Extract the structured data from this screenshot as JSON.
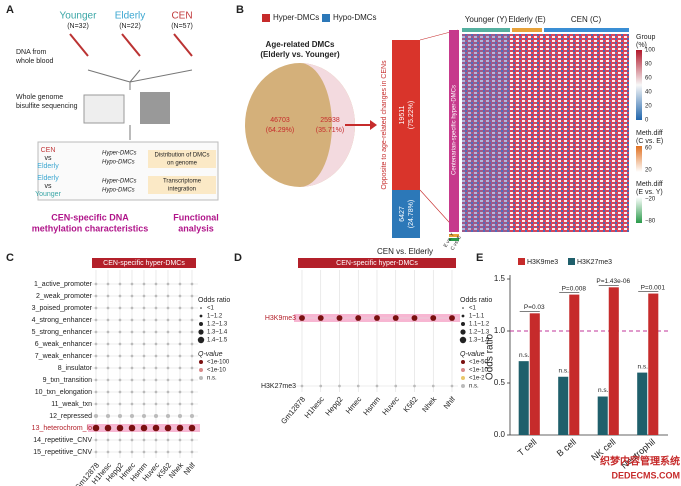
{
  "panel_a": {
    "label": "A",
    "groups": [
      "Younger",
      "Elderly",
      "CEN"
    ],
    "group_n": [
      "(N=32)",
      "(N=22)",
      "(N=57)"
    ],
    "steps": [
      "DNA from",
      "whole blood",
      "Whole genome",
      "bisulfite sequencing"
    ],
    "comparisons": [
      "CEN",
      "vs",
      "Elderly",
      "Elderly",
      "vs",
      "Younger"
    ],
    "hyper": "Hyper-DMCs",
    "hypo": "Hypo-DMCs",
    "analyses": [
      "Distribution of DMCs",
      "on genome",
      "Transcriptome",
      "integration"
    ],
    "outcomes": [
      "CEN-specific DNA",
      "methylation characteristics",
      "Functional",
      "analysis"
    ]
  },
  "panel_b": {
    "label": "B",
    "legend": [
      "Hyper-DMCs",
      "Hypo-DMCs"
    ],
    "pie_title": [
      "Age-related DMCs",
      "(Elderly vs. Younger)"
    ],
    "pie_labels": [
      "46703",
      "(64.29%)",
      "25938",
      "(35.71%)"
    ],
    "side_label": [
      "Opposite to age-related changes in CENs"
    ],
    "bar_labels": [
      "19511",
      "(75.22%)",
      "6427",
      "(24.78%)"
    ],
    "bar_caption": "CEN vs. Elderly",
    "strip_label": "Centenarian-specific hyper-DMCs",
    "groups": [
      "Younger (Y)",
      "Elderly (E)",
      "CEN (C)"
    ],
    "legend_titles": [
      "Group",
      "(%)",
      "Meth.diff",
      "(C vs. E)",
      "Meth.diff",
      "(E vs. Y)"
    ],
    "scale1": [
      "100",
      "80",
      "60",
      "40",
      "20",
      "0"
    ],
    "scale2": [
      "60",
      "20"
    ],
    "scale3": [
      "−20",
      "−80"
    ],
    "row_labels": [
      "E vs. Y",
      "C vs. E"
    ]
  },
  "chart_data": [
    {
      "type": "dot",
      "label": "C",
      "banner": "CEN-specific hyper-DMCs",
      "rows": [
        "1_active_promoter",
        "2_weak_promoter",
        "3_poised_promoter",
        "4_strong_enhancer",
        "5_strong_enhancer",
        "6_weak_enhancer",
        "7_weak_enhancer",
        "8_insulator",
        "9_txn_transition",
        "10_txn_elongation",
        "11_weak_txn",
        "12_repressed",
        "13_heterochrom_lo",
        "14_repetitive_CNV",
        "15_repetitive_CNV"
      ],
      "columns": [
        "Gm12878",
        "H1hesc",
        "Hepg2",
        "Hmec",
        "Hsmm",
        "Huvec",
        "K562",
        "Nhek",
        "Nhlf"
      ],
      "highlight_row": 12,
      "highlight_color": "#f7b6d2",
      "row_colors": [
        "#bbbbbb",
        "#bbbbbb",
        "#bbbbbb",
        "#bbbbbb",
        "#bbbbbb",
        "#bbbbbb",
        "#bbbbbb",
        "#bbbbbb",
        "#bbbbbb",
        "#bbbbbb",
        "#bbbbbb",
        "#bbbbbb",
        "#7a1010",
        "#bbbbbb",
        "#bbbbbb"
      ],
      "values": [
        [
          0.9,
          0.9,
          0.9,
          0.9,
          0.9,
          0.9,
          0.9,
          0.9,
          0.9
        ],
        [
          0.9,
          0.9,
          0.9,
          0.9,
          0.9,
          0.9,
          0.9,
          0.9,
          0.9
        ],
        [
          0.9,
          0.9,
          0.9,
          0.9,
          0.9,
          0.9,
          0.9,
          0.9,
          0.9
        ],
        [
          0.9,
          0.9,
          0.9,
          0.9,
          0.9,
          0.9,
          0.9,
          0.9,
          0.9
        ],
        [
          0.9,
          0.9,
          0.9,
          0.9,
          0.9,
          0.9,
          0.9,
          0.9,
          0.9
        ],
        [
          0.9,
          0.9,
          0.9,
          0.9,
          0.9,
          0.9,
          0.9,
          0.9,
          0.9
        ],
        [
          0.9,
          0.9,
          0.9,
          0.9,
          0.9,
          0.9,
          0.9,
          0.9,
          0.9
        ],
        [
          0.9,
          0.9,
          0.9,
          0.9,
          0.9,
          0.9,
          0.9,
          0.9,
          0.9
        ],
        [
          0.9,
          0.9,
          0.9,
          0.9,
          0.9,
          0.9,
          0.9,
          0.9,
          0.9
        ],
        [
          0.9,
          0.9,
          0.9,
          0.9,
          0.9,
          0.9,
          0.9,
          0.9,
          0.9
        ],
        [
          0.9,
          0.9,
          0.9,
          0.9,
          0.9,
          0.9,
          0.9,
          0.9,
          0.9
        ],
        [
          1.1,
          1.1,
          1.1,
          1.1,
          1.1,
          1.1,
          1.1,
          1.1,
          1.1
        ],
        [
          1.45,
          1.45,
          1.45,
          1.45,
          1.45,
          1.45,
          1.45,
          1.45,
          1.45
        ],
        [
          0.9,
          0.9,
          0.9,
          0.9,
          0.9,
          0.9,
          0.9,
          0.9,
          0.9
        ],
        [
          0.9,
          0.9,
          0.9,
          0.9,
          0.9,
          0.9,
          0.9,
          0.9,
          0.9
        ]
      ],
      "size_title": "Odds ratio",
      "size_labels": [
        "<1",
        "1~1.2",
        "1.2~1.3",
        "1.3~1.4",
        "1.4~1.5"
      ],
      "color_title": "Q-value",
      "color_labels": [
        "<1e-100",
        "<1e-10",
        "n.s."
      ],
      "color_levels": [
        "#7a1010",
        "#d88a8a",
        "#bbbbbb"
      ]
    },
    {
      "type": "dot",
      "label": "D",
      "banner": "CEN-specific hyper-DMCs",
      "rows": [
        "H3K9me3",
        "H3K27me3"
      ],
      "columns": [
        "Gm12878",
        "H1hesc",
        "Hepg2",
        "Hmec",
        "Hsmm",
        "Huvec",
        "K562",
        "Nhek",
        "Nhlf"
      ],
      "highlight_row": 0,
      "highlight_color": "#f7b6d2",
      "row_colors": [
        "#7a1010",
        "#bbbbbb"
      ],
      "values": [
        [
          1.35,
          1.35,
          1.35,
          1.35,
          1.35,
          1.35,
          1.35,
          1.35,
          1.35
        ],
        [
          0.9,
          0.9,
          0.9,
          0.9,
          0.9,
          0.9,
          0.9,
          0.9,
          0.9
        ]
      ],
      "size_title": "Odds ratio",
      "size_labels": [
        "<1",
        "1~1.1",
        "1.1~1.2",
        "1.2~1.3",
        "1.3~1.5"
      ],
      "color_title": "Q-value",
      "color_labels": [
        "<1e-50",
        "<1e-10",
        "<1e-2",
        "n.s."
      ],
      "color_levels": [
        "#7a1010",
        "#d88a8a",
        "#e8c76a",
        "#bbbbbb"
      ]
    },
    {
      "type": "bar",
      "label": "E",
      "ylabel": "Odds ratio",
      "categories": [
        "T cell",
        "B cell",
        "NK cell",
        "Neutrophil"
      ],
      "series": [
        {
          "name": "H3K9me3",
          "color": "#c62b2b",
          "values": [
            1.17,
            1.35,
            1.42,
            1.36
          ]
        },
        {
          "name": "H3K27me3",
          "color": "#1f5f6b",
          "values": [
            0.71,
            0.56,
            0.37,
            0.6
          ]
        }
      ],
      "ylim": [
        0,
        1.5
      ],
      "yticks": [
        {
          "value": 0,
          "label": "0.0"
        },
        {
          "value": 0.5,
          "label": "0.5"
        },
        {
          "value": 1,
          "label": "1.0"
        },
        {
          "value": 1.5,
          "label": "1.5"
        }
      ],
      "reference_line": 1,
      "p_labels": [
        "P=0.03",
        "P=0.008",
        "P=1.43e-06",
        "P=0.001"
      ],
      "ns_labels": [
        "n.s.",
        "n.s.",
        "n.s.",
        "n.s."
      ]
    }
  ],
  "watermark": [
    "织梦内容管理系统",
    "DEDECMS.COM"
  ]
}
